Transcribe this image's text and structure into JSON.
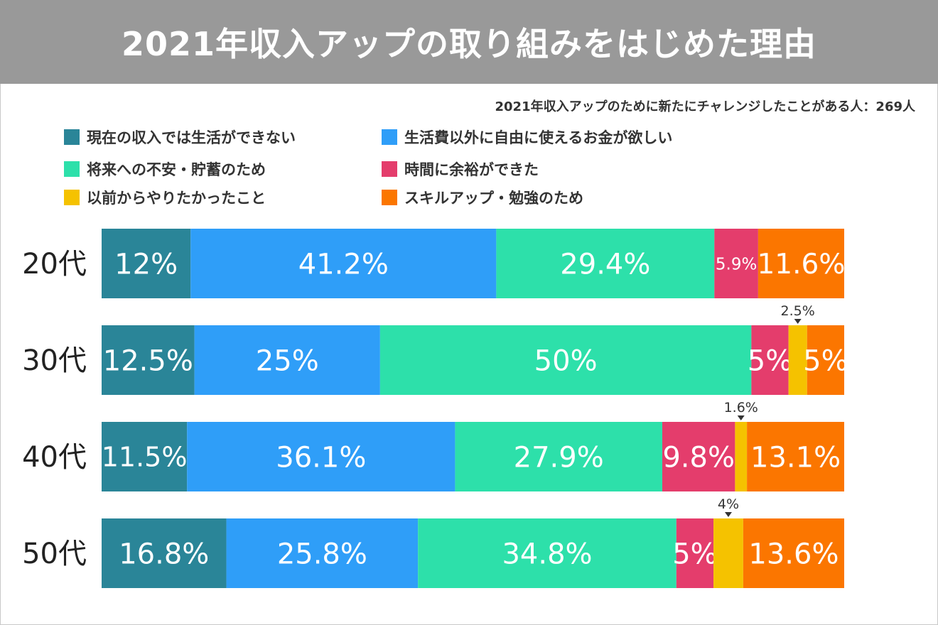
{
  "title": "2021年収入アップの取り組みをはじめた理由",
  "subtitle": "2021年収入アップのために新たにチャレンジしたことがある人：269人",
  "chart_data": {
    "type": "bar",
    "orientation": "horizontal",
    "stacked": true,
    "normalized": true,
    "title": "2021年収入アップの取り組みをはじめた理由",
    "categories": [
      "20代",
      "30代",
      "40代",
      "50代"
    ],
    "series": [
      {
        "name": "現在の収入では生活ができない",
        "color": "#2a8598",
        "values": [
          12,
          12.5,
          11.5,
          16.8
        ],
        "labels": [
          "12%",
          "12.5%",
          "11.5%",
          "16.8%"
        ]
      },
      {
        "name": "生活費以外に自由に使えるお金が欲しい",
        "color": "#2f9ef8",
        "values": [
          41.2,
          25,
          36.1,
          25.8
        ],
        "labels": [
          "41.2%",
          "25%",
          "36.1%",
          "25.8%"
        ]
      },
      {
        "name": "将来への不安・貯蓄のため",
        "color": "#2de0aa",
        "values": [
          29.4,
          50,
          27.9,
          34.8
        ],
        "labels": [
          "29.4%",
          "50%",
          "27.9%",
          "34.8%"
        ]
      },
      {
        "name": "時間に余裕ができた",
        "color": "#e43d6c",
        "values": [
          5.9,
          5,
          9.8,
          5
        ],
        "labels": [
          "5.9%",
          "5%",
          "9.8%",
          "5%"
        ]
      },
      {
        "name": "以前からやりたかったこと",
        "color": "#f5c200",
        "values": [
          0,
          2.5,
          1.6,
          4
        ],
        "labels": [
          "",
          "2.5%",
          "1.6%",
          "4%"
        ]
      },
      {
        "name": "スキルアップ・勉強のため",
        "color": "#fb7600",
        "values": [
          11.6,
          5,
          13.1,
          13.6
        ],
        "labels": [
          "11.6%",
          "5%",
          "13.1%",
          "13.6%"
        ]
      }
    ],
    "legend_position": "top",
    "xlim": [
      0,
      100
    ]
  }
}
